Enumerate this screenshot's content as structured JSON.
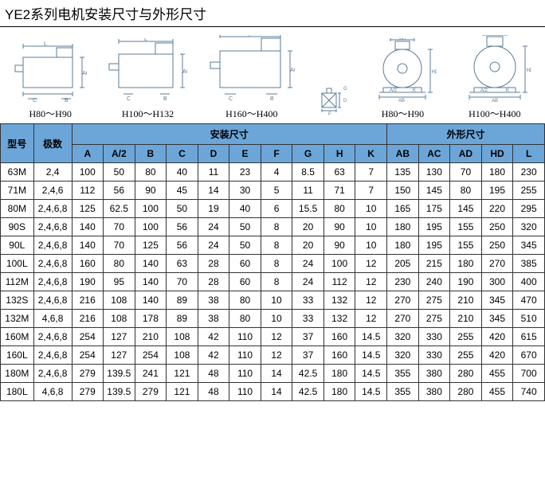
{
  "title": "YE2系列电机安装尺寸与外形尺寸",
  "diagrams": [
    {
      "label": "H80～H90"
    },
    {
      "label": "H100～H132"
    },
    {
      "label": "H160～H400"
    },
    {
      "label": ""
    },
    {
      "label": "H80～H90"
    },
    {
      "label": "H100～H400"
    }
  ],
  "headers": {
    "model": "型号",
    "poles": "极数",
    "install": "安装尺寸",
    "outline": "外形尺寸",
    "cols_install": [
      "A",
      "A/2",
      "B",
      "C",
      "D",
      "E",
      "F",
      "G",
      "H",
      "K"
    ],
    "cols_outline": [
      "AB",
      "AC",
      "AD",
      "HD",
      "L"
    ]
  },
  "rows": [
    {
      "model": "63M",
      "poles": "2,4",
      "v": [
        "100",
        "50",
        "80",
        "40",
        "11",
        "23",
        "4",
        "8.5",
        "63",
        "7",
        "135",
        "130",
        "70",
        "180",
        "230"
      ]
    },
    {
      "model": "71M",
      "poles": "2,4,6",
      "v": [
        "112",
        "56",
        "90",
        "45",
        "14",
        "30",
        "5",
        "11",
        "71",
        "7",
        "150",
        "145",
        "80",
        "195",
        "255"
      ]
    },
    {
      "model": "80M",
      "poles": "2,4,6,8",
      "v": [
        "125",
        "62.5",
        "100",
        "50",
        "19",
        "40",
        "6",
        "15.5",
        "80",
        "10",
        "165",
        "175",
        "145",
        "220",
        "295"
      ]
    },
    {
      "model": "90S",
      "poles": "2,4,6,8",
      "v": [
        "140",
        "70",
        "100",
        "56",
        "24",
        "50",
        "8",
        "20",
        "90",
        "10",
        "180",
        "195",
        "155",
        "250",
        "320"
      ]
    },
    {
      "model": "90L",
      "poles": "2,4,6,8",
      "v": [
        "140",
        "70",
        "125",
        "56",
        "24",
        "50",
        "8",
        "20",
        "90",
        "10",
        "180",
        "195",
        "155",
        "250",
        "345"
      ]
    },
    {
      "model": "100L",
      "poles": "2,4,6,8",
      "v": [
        "160",
        "80",
        "140",
        "63",
        "28",
        "60",
        "8",
        "24",
        "100",
        "12",
        "205",
        "215",
        "180",
        "270",
        "385"
      ]
    },
    {
      "model": "112M",
      "poles": "2,4,6,8",
      "v": [
        "190",
        "95",
        "140",
        "70",
        "28",
        "60",
        "8",
        "24",
        "112",
        "12",
        "230",
        "240",
        "190",
        "300",
        "400"
      ]
    },
    {
      "model": "132S",
      "poles": "2,4,6,8",
      "v": [
        "216",
        "108",
        "140",
        "89",
        "38",
        "80",
        "10",
        "33",
        "132",
        "12",
        "270",
        "275",
        "210",
        "345",
        "470"
      ]
    },
    {
      "model": "132M",
      "poles": "4,6,8",
      "v": [
        "216",
        "108",
        "178",
        "89",
        "38",
        "80",
        "10",
        "33",
        "132",
        "12",
        "270",
        "275",
        "210",
        "345",
        "510"
      ]
    },
    {
      "model": "160M",
      "poles": "2,4,6,8",
      "v": [
        "254",
        "127",
        "210",
        "108",
        "42",
        "110",
        "12",
        "37",
        "160",
        "14.5",
        "320",
        "330",
        "255",
        "420",
        "615"
      ]
    },
    {
      "model": "160L",
      "poles": "2,4,6,8",
      "v": [
        "254",
        "127",
        "254",
        "108",
        "42",
        "110",
        "12",
        "37",
        "160",
        "14.5",
        "320",
        "330",
        "255",
        "420",
        "670"
      ]
    },
    {
      "model": "180M",
      "poles": "2,4,6,8",
      "v": [
        "279",
        "139.5",
        "241",
        "121",
        "48",
        "110",
        "14",
        "42.5",
        "180",
        "14.5",
        "355",
        "380",
        "280",
        "455",
        "700"
      ]
    },
    {
      "model": "180L",
      "poles": "4,6,8",
      "v": [
        "279",
        "139.5",
        "279",
        "121",
        "48",
        "110",
        "14",
        "42.5",
        "180",
        "14.5",
        "355",
        "380",
        "280",
        "455",
        "740"
      ]
    }
  ],
  "colors": {
    "header_bg": "#6ca6d9",
    "border": "#333333"
  }
}
